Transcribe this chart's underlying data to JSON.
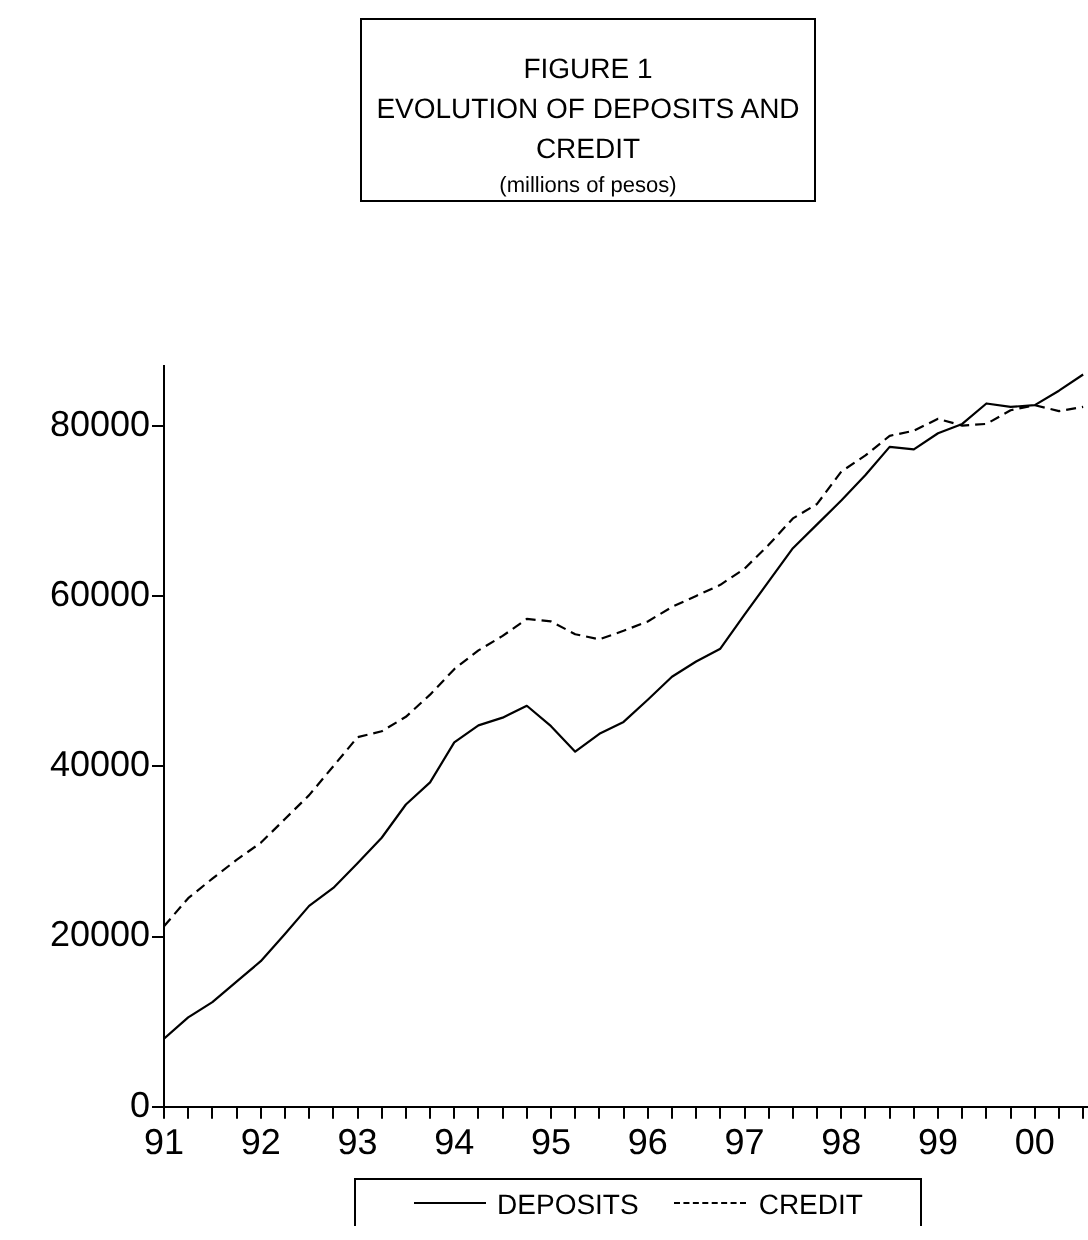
{
  "chart_data": {
    "type": "line",
    "title": "FIGURE 1",
    "subtitle": "EVOLUTION OF DEPOSITS AND CREDIT",
    "annotations": [
      "(millions of pesos)"
    ],
    "x": [
      1991,
      1991.25,
      1991.5,
      1991.75,
      1992,
      1992.25,
      1992.5,
      1992.75,
      1993,
      1993.25,
      1993.5,
      1993.75,
      1994,
      1994.25,
      1994.5,
      1994.75,
      1995,
      1995.25,
      1995.5,
      1995.75,
      1996,
      1996.25,
      1996.5,
      1996.75,
      1997,
      1997.25,
      1997.5,
      1997.75,
      1998,
      1998.25,
      1998.5,
      1998.75,
      1999,
      1999.25,
      1999.5,
      1999.75,
      2000,
      2000.25,
      2000.5
    ],
    "series": [
      {
        "name": "DEPOSITS",
        "color": "#000000",
        "line_style": "solid",
        "values": [
          8000,
          10500,
          12300,
          14700,
          17100,
          20300,
          23600,
          25700,
          28600,
          31600,
          35500,
          38100,
          42800,
          44800,
          45700,
          47100,
          44700,
          41700,
          43800,
          45200,
          47800,
          50500,
          52300,
          53800,
          57800,
          61700,
          65600,
          68400,
          71200,
          74200,
          77500,
          77200,
          79100,
          80200,
          82600,
          82200,
          82400,
          84100,
          86000
        ]
      },
      {
        "name": "CREDIT",
        "color": "#000000",
        "line_style": "dashed",
        "values": [
          21200,
          24500,
          26800,
          29000,
          31000,
          33800,
          36600,
          40000,
          43400,
          44100,
          45800,
          48400,
          51400,
          53600,
          55300,
          57300,
          57000,
          55500,
          54900,
          55900,
          57000,
          58700,
          60000,
          61300,
          63200,
          66000,
          69100,
          70800,
          74600,
          76500,
          78800,
          79400,
          80800,
          80000,
          80200,
          81800,
          82400,
          81700,
          82200
        ]
      }
    ],
    "xlim": [
      1991,
      2000.55
    ],
    "xticks": [
      {
        "value": 1991,
        "label": "91"
      },
      {
        "value": 1991.25,
        "label": null
      },
      {
        "value": 1991.5,
        "label": null
      },
      {
        "value": 1991.75,
        "label": null
      },
      {
        "value": 1992,
        "label": "92"
      },
      {
        "value": 1992.25,
        "label": null
      },
      {
        "value": 1992.5,
        "label": null
      },
      {
        "value": 1992.75,
        "label": null
      },
      {
        "value": 1993,
        "label": "93"
      },
      {
        "value": 1993.25,
        "label": null
      },
      {
        "value": 1993.5,
        "label": null
      },
      {
        "value": 1993.75,
        "label": null
      },
      {
        "value": 1994,
        "label": "94"
      },
      {
        "value": 1994.25,
        "label": null
      },
      {
        "value": 1994.5,
        "label": null
      },
      {
        "value": 1994.75,
        "label": null
      },
      {
        "value": 1995,
        "label": "95"
      },
      {
        "value": 1995.25,
        "label": null
      },
      {
        "value": 1995.5,
        "label": null
      },
      {
        "value": 1995.75,
        "label": null
      },
      {
        "value": 1996,
        "label": "96"
      },
      {
        "value": 1996.25,
        "label": null
      },
      {
        "value": 1996.5,
        "label": null
      },
      {
        "value": 1996.75,
        "label": null
      },
      {
        "value": 1997,
        "label": "97"
      },
      {
        "value": 1997.25,
        "label": null
      },
      {
        "value": 1997.5,
        "label": null
      },
      {
        "value": 1997.75,
        "label": null
      },
      {
        "value": 1998,
        "label": "98"
      },
      {
        "value": 1998.25,
        "label": null
      },
      {
        "value": 1998.5,
        "label": null
      },
      {
        "value": 1998.75,
        "label": null
      },
      {
        "value": 1999,
        "label": "99"
      },
      {
        "value": 1999.25,
        "label": null
      },
      {
        "value": 1999.5,
        "label": null
      },
      {
        "value": 1999.75,
        "label": null
      },
      {
        "value": 2000,
        "label": "00"
      },
      {
        "value": 2000.25,
        "label": null
      },
      {
        "value": 2000.5,
        "label": null
      }
    ],
    "ylim": [
      0,
      87000
    ],
    "yticks": [
      0,
      20000,
      40000,
      60000,
      80000
    ],
    "grid": false,
    "legend": "bottom",
    "marker": "none"
  }
}
